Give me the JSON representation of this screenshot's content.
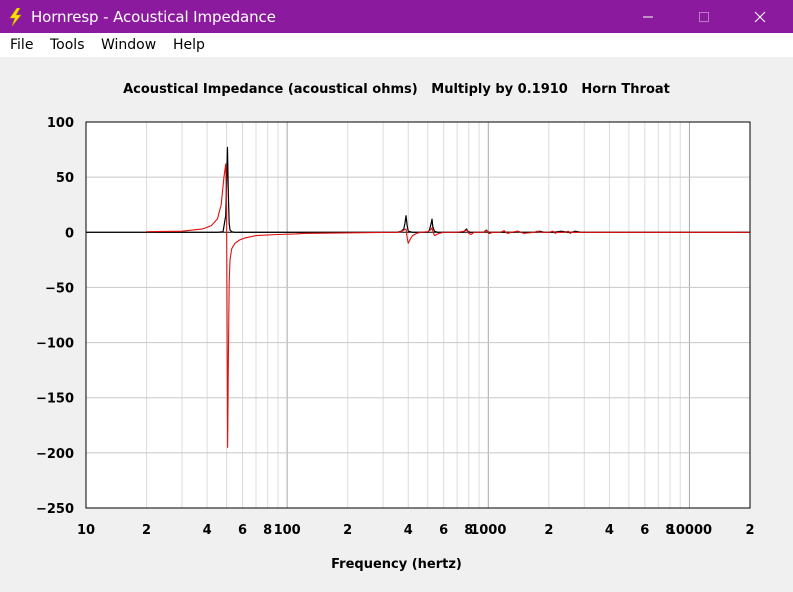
{
  "window": {
    "title": "Hornresp - Acoustical Impedance",
    "app_icon": "lightning-bolt-icon",
    "controls": [
      "minimize-icon",
      "maximize-icon",
      "close-icon"
    ]
  },
  "menu": {
    "items": [
      {
        "label": "File"
      },
      {
        "label": "Tools"
      },
      {
        "label": "Window"
      },
      {
        "label": "Help"
      }
    ]
  },
  "chart_data": {
    "type": "line",
    "title": "Acoustical Impedance (acoustical ohms)   Multiply by 0.1910   Horn Throat",
    "xlabel": "Frequency (hertz)",
    "ylabel": "",
    "x_scale": "log",
    "xlim": [
      10,
      20000
    ],
    "ylim": [
      -250,
      100
    ],
    "grid": true,
    "y_ticks": [
      100,
      50,
      0,
      -50,
      -100,
      -150,
      -200,
      -250
    ],
    "y_tick_labels": [
      "100",
      "50",
      "0",
      "−50",
      "−100",
      "−150",
      "−200",
      "−250"
    ],
    "x_ticks": [
      10,
      20,
      40,
      60,
      80,
      100,
      200,
      400,
      600,
      800,
      1000,
      2000,
      4000,
      6000,
      8000,
      10000,
      20000
    ],
    "x_tick_labels": [
      "10",
      "2",
      "4",
      "6",
      "8",
      "100",
      "2",
      "4",
      "6",
      "8",
      "1000",
      "2",
      "4",
      "6",
      "8",
      "10000",
      "2"
    ],
    "series": [
      {
        "color": "#000000",
        "x": [
          10,
          20,
          30,
          40,
          45,
          48,
          49.5,
          50,
          50.5,
          51,
          51.5,
          52,
          53,
          55,
          60,
          80,
          100,
          120,
          140,
          200,
          300,
          350,
          370,
          380,
          385,
          390,
          395,
          400,
          420,
          450,
          500,
          510,
          520,
          525,
          530,
          540,
          560,
          600,
          700,
          750,
          770,
          780,
          790,
          810,
          850,
          950,
          970,
          980,
          990,
          1010,
          1100,
          1350,
          1400,
          1450,
          1700,
          1800,
          1900,
          2100,
          2300,
          2500,
          2600,
          2700,
          2900,
          3100,
          3300,
          20000
        ],
        "y": [
          0,
          0,
          0,
          0,
          0,
          0.5,
          15,
          45,
          77,
          35,
          8,
          2,
          0.5,
          0,
          0,
          0,
          0,
          0,
          0,
          0,
          0,
          0,
          1,
          3,
          8,
          15,
          6,
          1,
          0,
          0,
          0,
          2,
          8,
          12,
          5,
          1,
          0,
          0,
          0,
          0,
          2,
          3,
          1,
          0,
          0,
          0,
          1.5,
          2,
          0.5,
          0,
          0,
          0,
          1,
          0,
          0,
          1,
          0,
          0,
          1,
          0,
          0,
          1,
          0,
          0,
          0,
          0
        ]
      },
      {
        "color": "#e01010",
        "x": [
          20,
          30,
          38,
          42,
          45,
          47,
          48.5,
          49.5,
          50,
          50.3,
          50.6,
          51,
          51.5,
          52,
          53,
          55,
          58,
          62,
          70,
          90,
          110,
          120,
          350,
          370,
          380,
          390,
          395,
          400,
          410,
          420,
          440,
          460,
          500,
          515,
          525,
          530,
          540,
          555,
          570,
          600,
          700,
          760,
          780,
          790,
          800,
          820,
          850,
          950,
          975,
          990,
          1005,
          1020,
          1050,
          1150,
          1200,
          1220,
          1250,
          1300,
          1400,
          1450,
          1500,
          1700,
          1750,
          1800,
          2000,
          2100,
          2150,
          2200,
          2400,
          2500,
          2550,
          2600,
          3000,
          20000
        ],
        "y": [
          0.5,
          1,
          3,
          6,
          12,
          25,
          50,
          62,
          20,
          -90,
          -195,
          -120,
          -45,
          -25,
          -15,
          -10,
          -7,
          -5,
          -3,
          -2,
          -1.5,
          -1,
          0,
          0.5,
          2,
          3,
          -5,
          -10,
          -6,
          -3,
          -1,
          0,
          0.5,
          2,
          4,
          1,
          -3,
          -2,
          -1,
          0,
          0,
          1,
          2,
          1,
          -1,
          -2,
          0,
          0,
          1.5,
          1,
          -1,
          -1,
          0,
          0,
          1.5,
          0,
          -1,
          0,
          1,
          0,
          -1,
          0,
          1,
          0,
          0,
          1,
          -1,
          0,
          0,
          1,
          -1,
          0,
          0,
          0
        ]
      }
    ]
  }
}
